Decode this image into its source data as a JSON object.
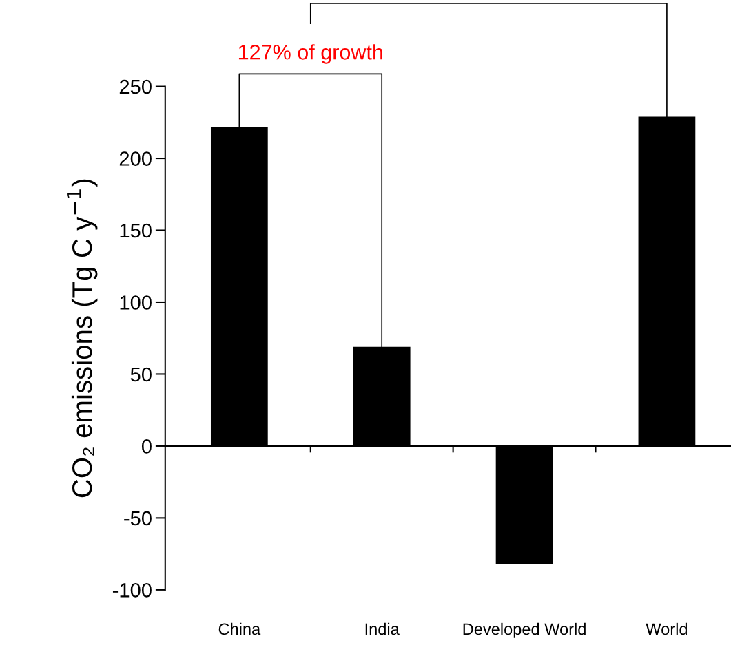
{
  "chart_data": {
    "type": "bar",
    "ylabel": "CO₂ emissions (Tg C y$^{−1}$)",
    "categories": [
      "China",
      "India",
      "Developed World",
      "World"
    ],
    "values": [
      222,
      69,
      -82,
      229
    ],
    "color": "#000000",
    "ylim": [
      -100,
      250
    ],
    "yticks": [
      -100,
      -50,
      0,
      50,
      100,
      150,
      200,
      250
    ],
    "annotations": [
      "127% of growth"
    ]
  }
}
